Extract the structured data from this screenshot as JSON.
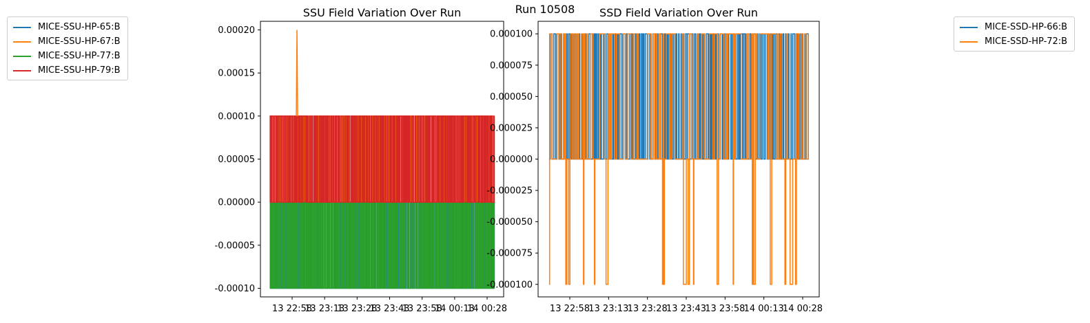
{
  "suptitle": "Run 10508",
  "chart_data": [
    {
      "type": "line",
      "title": "SSU Field Variation Over Run",
      "xlabel": "",
      "ylabel": "",
      "ylim": [
        -0.00011,
        0.00021
      ],
      "yticks": [
        "-0.00010",
        "-0.00005",
        "0.00000",
        "0.00005",
        "0.00010",
        "0.00015",
        "0.00020"
      ],
      "ytick_values": [
        -0.0001,
        -5e-05,
        0,
        5e-05,
        0.0001,
        0.00015,
        0.0002
      ],
      "xlim_minutes": [
        -9,
        224
      ],
      "xticks": [
        "13 22:58",
        "13 23:13",
        "13 23:28",
        "13 23:43",
        "13 23:58",
        "14 00:13",
        "14 00:28"
      ],
      "legend_position": "outside-left",
      "value_set": [
        -0.0001,
        0,
        0.0001
      ],
      "spike": {
        "series": "MICE-SSU-HP-67:B",
        "value": 0.0002
      },
      "series": [
        {
          "name": "MICE-SSU-HP-65:B",
          "color": "#1f77b4",
          "levels": [
            -0.0001,
            0
          ]
        },
        {
          "name": "MICE-SSU-HP-67:B",
          "color": "#ff7f0e",
          "levels": [
            0,
            0.0001
          ]
        },
        {
          "name": "MICE-SSU-HP-77:B",
          "color": "#2ca02c",
          "levels": [
            -0.0001,
            0
          ]
        },
        {
          "name": "MICE-SSU-HP-79:B",
          "color": "#d62728",
          "levels": [
            0,
            0.0001
          ]
        }
      ]
    },
    {
      "type": "line",
      "title": "SSD Field Variation Over Run",
      "xlabel": "",
      "ylabel": "",
      "ylim": [
        -0.00011,
        0.00011
      ],
      "yticks": [
        "-0.000100",
        "-0.000075",
        "-0.000050",
        "-0.000025",
        "0.000000",
        "0.000025",
        "0.000050",
        "0.000075",
        "0.000100"
      ],
      "ytick_values": [
        -0.0001,
        -7.5e-05,
        -5e-05,
        -2.5e-05,
        0,
        2.5e-05,
        5e-05,
        7.5e-05,
        0.0001
      ],
      "xlim_minutes": [
        -9,
        224
      ],
      "xticks": [
        "13 22:58",
        "13 23:13",
        "13 23:28",
        "13 23:43",
        "13 23:58",
        "14 00:13",
        "14 00:28"
      ],
      "legend_position": "outside-right",
      "value_set": [
        -0.0001,
        0,
        0.0001
      ],
      "series": [
        {
          "name": "MICE-SSD-HP-66:B",
          "color": "#1f77b4",
          "levels": [
            0,
            0.0001
          ]
        },
        {
          "name": "MICE-SSD-HP-72:B",
          "color": "#ff7f0e",
          "levels": [
            -0.0001,
            0,
            0.0001
          ]
        }
      ]
    }
  ]
}
